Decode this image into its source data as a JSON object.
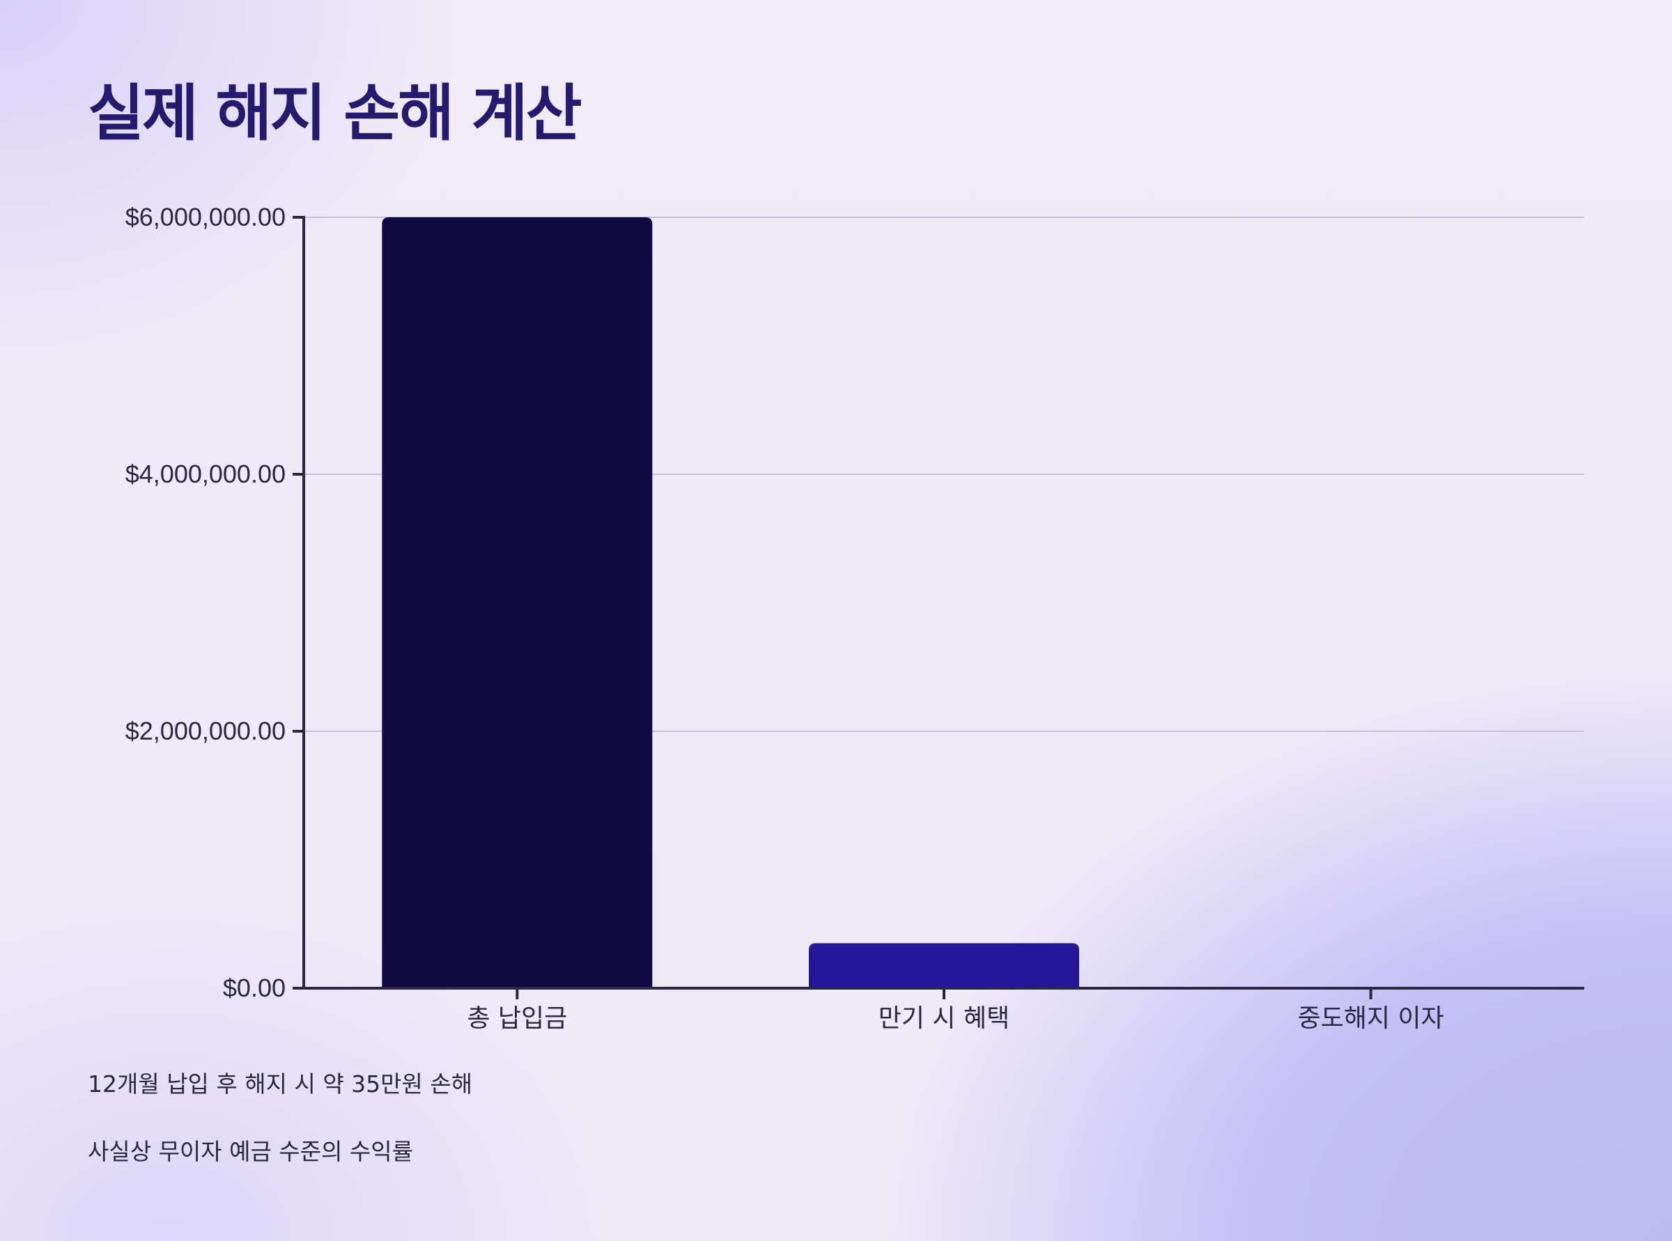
{
  "page": {
    "title": "실제 해지 손해 계산",
    "notes": [
      "12개월 납입 후 해지 시 약 35만원 손해",
      "사실상 무이자 예금 수준의 수익률"
    ]
  },
  "chart_data": {
    "type": "bar",
    "title": "",
    "xlabel": "",
    "ylabel": "",
    "categories": [
      "총 납입금",
      "만기 시 혜택",
      "중도해지 이자"
    ],
    "values": [
      6000000,
      350000,
      0
    ],
    "ylim": [
      0,
      6000000
    ],
    "yticks": [
      0,
      2000000,
      4000000,
      6000000
    ],
    "ytick_labels": [
      "$0.00",
      "$2,000,000.00",
      "$4,000,000.00",
      "$6,000,000.00"
    ],
    "grid": true,
    "legend": "none",
    "colors": [
      "#110a42",
      "#25169a",
      "#3b2bd0"
    ]
  },
  "colors": {
    "title": "#241a6e",
    "axis": "#2b2740",
    "grid": "#c5bfd8"
  }
}
